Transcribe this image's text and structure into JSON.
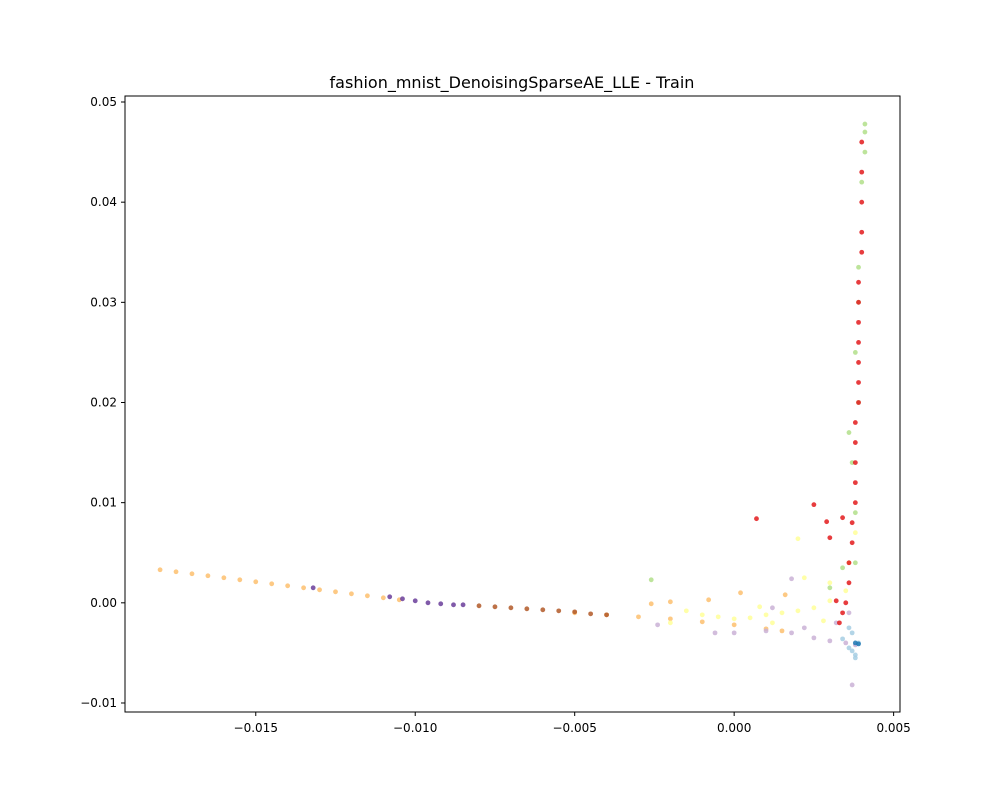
{
  "chart_data": {
    "type": "scatter",
    "title": "fashion_mnist_DenoisingSparseAE_LLE - Train",
    "xlabel": "",
    "ylabel": "",
    "xlim": [
      -0.0191,
      0.0052
    ],
    "ylim": [
      -0.0109,
      0.0506
    ],
    "xticks": [
      -0.015,
      -0.01,
      -0.005,
      0.0,
      0.005
    ],
    "xtick_labels": [
      "−0.015",
      "−0.010",
      "−0.005",
      "0.000",
      "0.005"
    ],
    "yticks": [
      -0.01,
      0.0,
      0.01,
      0.02,
      0.03,
      0.04,
      0.05
    ],
    "ytick_labels": [
      "−0.01",
      "0.00",
      "0.01",
      "0.02",
      "0.03",
      "0.04",
      "0.05"
    ],
    "grid": false,
    "legend": "none",
    "colormap": "Paired",
    "series": [
      {
        "color": "#fdbf6f",
        "points": [
          [
            -0.018,
            0.0033
          ],
          [
            -0.0175,
            0.0031
          ],
          [
            -0.017,
            0.0029
          ],
          [
            -0.0165,
            0.0027
          ],
          [
            -0.016,
            0.0025
          ],
          [
            -0.0155,
            0.0023
          ],
          [
            -0.015,
            0.0021
          ],
          [
            -0.0145,
            0.0019
          ],
          [
            -0.014,
            0.0017
          ],
          [
            -0.0135,
            0.0015
          ],
          [
            -0.013,
            0.0013
          ],
          [
            -0.0125,
            0.0011
          ],
          [
            -0.012,
            0.0009
          ],
          [
            -0.0115,
            0.0007
          ],
          [
            -0.011,
            0.0005
          ],
          [
            -0.0105,
            0.0003
          ],
          [
            -0.005,
            -0.001
          ],
          [
            -0.004,
            -0.0012
          ],
          [
            -0.003,
            -0.0014
          ],
          [
            -0.002,
            -0.0016
          ],
          [
            -0.001,
            -0.0019
          ],
          [
            0.0,
            -0.0022
          ],
          [
            0.001,
            -0.0026
          ],
          [
            0.0015,
            -0.0028
          ],
          [
            -0.0026,
            -0.0001
          ],
          [
            -0.002,
            0.0001
          ],
          [
            -0.0008,
            0.0003
          ],
          [
            0.0002,
            0.001
          ],
          [
            0.0016,
            0.0008
          ]
        ]
      },
      {
        "color": "#6a3d9a",
        "points": [
          [
            -0.0108,
            0.0006
          ],
          [
            -0.0104,
            0.0004
          ],
          [
            -0.01,
            0.0002
          ],
          [
            -0.0096,
            0.0
          ],
          [
            -0.0092,
            -0.0001
          ],
          [
            -0.0088,
            -0.0002
          ],
          [
            -0.0085,
            -0.0002
          ],
          [
            -0.0132,
            0.0015
          ]
        ]
      },
      {
        "color": "#b15928",
        "points": [
          [
            -0.008,
            -0.0003
          ],
          [
            -0.0075,
            -0.0004
          ],
          [
            -0.007,
            -0.0005
          ],
          [
            -0.0065,
            -0.0006
          ],
          [
            -0.006,
            -0.0007
          ],
          [
            -0.0055,
            -0.0008
          ],
          [
            -0.005,
            -0.0009
          ],
          [
            -0.0045,
            -0.0011
          ],
          [
            -0.004,
            -0.0012
          ]
        ]
      },
      {
        "color": "#ffff99",
        "points": [
          [
            -0.001,
            -0.0012
          ],
          [
            -0.0005,
            -0.0014
          ],
          [
            0.0,
            -0.0016
          ],
          [
            0.0005,
            -0.0015
          ],
          [
            0.001,
            -0.0012
          ],
          [
            0.0015,
            -0.001
          ],
          [
            0.002,
            -0.0008
          ],
          [
            0.0025,
            -0.0005
          ],
          [
            0.003,
            0.0002
          ],
          [
            0.0035,
            0.0012
          ],
          [
            0.003,
            0.002
          ],
          [
            0.0022,
            0.0025
          ],
          [
            0.0012,
            -0.002
          ],
          [
            0.0028,
            -0.0018
          ],
          [
            0.0036,
            0.004
          ],
          [
            0.0038,
            0.007
          ],
          [
            0.002,
            0.0064
          ],
          [
            -0.002,
            -0.002
          ],
          [
            -0.0015,
            -0.0008
          ],
          [
            0.0008,
            -0.0004
          ]
        ]
      },
      {
        "color": "#cab2d6",
        "points": [
          [
            0.0,
            -0.003
          ],
          [
            0.001,
            -0.0028
          ],
          [
            0.0018,
            -0.003
          ],
          [
            0.0025,
            -0.0035
          ],
          [
            0.003,
            -0.0038
          ],
          [
            0.0035,
            -0.004
          ],
          [
            0.0038,
            -0.0042
          ],
          [
            0.0022,
            -0.0025
          ],
          [
            0.0032,
            -0.002
          ],
          [
            0.0036,
            -0.001
          ],
          [
            0.0037,
            -0.0082
          ],
          [
            0.0018,
            0.0024
          ],
          [
            0.0012,
            -0.0005
          ],
          [
            -0.0006,
            -0.003
          ],
          [
            -0.0024,
            -0.0022
          ]
        ]
      },
      {
        "color": "#a6cee3",
        "points": [
          [
            0.0036,
            -0.0045
          ],
          [
            0.0037,
            -0.0048
          ],
          [
            0.0038,
            -0.0052
          ],
          [
            0.0038,
            -0.0055
          ],
          [
            0.0037,
            -0.003
          ],
          [
            0.0034,
            -0.0036
          ],
          [
            0.0036,
            -0.0025
          ],
          [
            0.0039,
            -0.004
          ]
        ]
      },
      {
        "color": "#1f78b4",
        "points": [
          [
            0.0038,
            -0.004
          ],
          [
            0.0039,
            -0.0041
          ]
        ]
      },
      {
        "color": "#b2df8a",
        "points": [
          [
            -0.0026,
            0.0023
          ],
          [
            0.0036,
            0.017
          ],
          [
            0.0037,
            0.014
          ],
          [
            0.0038,
            0.009
          ],
          [
            0.0034,
            0.0035
          ],
          [
            0.003,
            0.0015
          ],
          [
            0.0038,
            0.025
          ],
          [
            0.0039,
            0.03
          ],
          [
            0.0039,
            0.0335
          ],
          [
            0.004,
            0.042
          ],
          [
            0.0041,
            0.045
          ],
          [
            0.0041,
            0.047
          ],
          [
            0.0041,
            0.0478
          ],
          [
            0.0039,
            0.02
          ],
          [
            0.0038,
            0.004
          ]
        ]
      },
      {
        "color": "#e31a1c",
        "points": [
          [
            0.004,
            0.046
          ],
          [
            0.004,
            0.043
          ],
          [
            0.004,
            0.04
          ],
          [
            0.004,
            0.037
          ],
          [
            0.004,
            0.035
          ],
          [
            0.0039,
            0.032
          ],
          [
            0.0039,
            0.03
          ],
          [
            0.0039,
            0.028
          ],
          [
            0.0039,
            0.026
          ],
          [
            0.0039,
            0.024
          ],
          [
            0.0039,
            0.022
          ],
          [
            0.0039,
            0.02
          ],
          [
            0.0038,
            0.018
          ],
          [
            0.0038,
            0.016
          ],
          [
            0.0038,
            0.014
          ],
          [
            0.0038,
            0.012
          ],
          [
            0.0038,
            0.01
          ],
          [
            0.0037,
            0.008
          ],
          [
            0.0037,
            0.006
          ],
          [
            0.0036,
            0.004
          ],
          [
            0.0036,
            0.002
          ],
          [
            0.0035,
            0.0
          ],
          [
            0.0034,
            -0.001
          ],
          [
            0.0033,
            -0.002
          ],
          [
            0.0025,
            0.0098
          ],
          [
            0.0029,
            0.0081
          ],
          [
            0.0007,
            0.0084
          ],
          [
            0.003,
            0.0065
          ],
          [
            0.0034,
            0.0085
          ],
          [
            0.0032,
            0.0002
          ]
        ]
      }
    ]
  }
}
